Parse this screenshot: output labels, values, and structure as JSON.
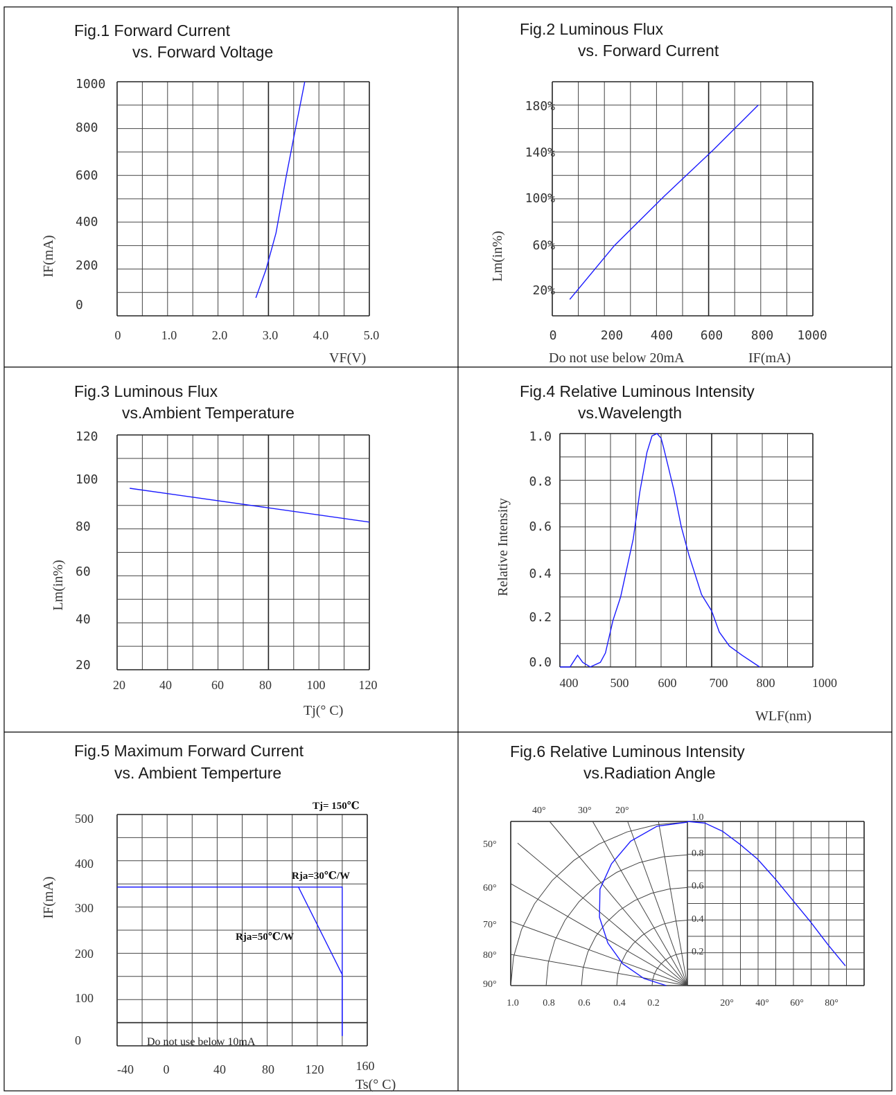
{
  "colors": {
    "curve": "#1a1aff",
    "grid": "#444444",
    "frame": "#000000"
  },
  "chart_data": [
    {
      "id": "fig1",
      "type": "line",
      "title": "Fig.1   Forward Current",
      "subtitle": "vs. Forward Voltage",
      "xlabel": "VF(V)",
      "ylabel": "IF(mA)",
      "xlim": [
        0,
        5
      ],
      "ylim": [
        0,
        1000
      ],
      "xticks": [
        "0",
        "1.0",
        "2.0",
        "3.0",
        "4.0",
        "5.0"
      ],
      "yticks": [
        "0",
        "200",
        "400",
        "600",
        "800",
        "1000"
      ],
      "x": [
        2.75,
        2.95,
        3.15,
        3.35,
        3.5,
        3.72
      ],
      "y": [
        0,
        130,
        300,
        560,
        740,
        1000
      ],
      "grid": true
    },
    {
      "id": "fig2",
      "type": "line",
      "title": "Fig.2   Luminous Flux",
      "subtitle": "vs. Forward Current",
      "xlabel": "IF(mA)",
      "xnote": "Do  not  use  below  20mA",
      "ylabel": "Lm(in%)",
      "xlim": [
        0,
        1000
      ],
      "ylim": [
        0,
        200
      ],
      "xticks": [
        "0",
        "200",
        "400",
        "600",
        "800",
        "1000"
      ],
      "yticks": [
        "20%",
        "60%",
        "100%",
        "140%",
        "180%"
      ],
      "x": [
        20,
        200,
        400,
        600,
        780
      ],
      "y": [
        14,
        60,
        102,
        142,
        180
      ],
      "grid": true
    },
    {
      "id": "fig3",
      "type": "line",
      "title": "Fig.3  Luminous Flux",
      "subtitle": "vs.Ambient Temperature",
      "xlabel": "Tj(° C)",
      "ylabel": "Lm(in%)",
      "xlim": [
        20,
        120
      ],
      "ylim": [
        20,
        120
      ],
      "xticks": [
        "20",
        "40",
        "60",
        "80",
        "100",
        "120"
      ],
      "yticks": [
        "20",
        "40",
        "60",
        "80",
        "100",
        "120"
      ],
      "x": [
        25,
        120
      ],
      "y": [
        100,
        85
      ],
      "grid": true
    },
    {
      "id": "fig4",
      "type": "line",
      "title": "Fig.4   Relative Luminous Intensity",
      "subtitle": "vs.Wavelength",
      "xlabel": "WLF(nm)",
      "ylabel": "Relative  Intensity",
      "xlim": [
        400,
        1000
      ],
      "ylim": [
        0,
        1.0
      ],
      "xticks": [
        "400",
        "500",
        "600",
        "700",
        "800",
        "1000"
      ],
      "yticks": [
        "0.0",
        "0.2",
        "0.4",
        "0.6",
        "0.8",
        "1.0"
      ],
      "x": [
        400,
        420,
        435,
        445,
        460,
        480,
        490,
        505,
        520,
        545,
        558,
        572,
        582,
        592,
        600,
        605,
        615,
        625,
        640,
        655,
        680,
        700,
        715,
        735,
        760,
        795
      ],
      "y": [
        0.0,
        0.0,
        0.05,
        0.02,
        0.0,
        0.02,
        0.06,
        0.2,
        0.3,
        0.55,
        0.75,
        0.92,
        0.99,
        1.0,
        0.98,
        0.94,
        0.85,
        0.76,
        0.6,
        0.48,
        0.31,
        0.24,
        0.15,
        0.09,
        0.05,
        0.0
      ],
      "grid": true
    },
    {
      "id": "fig5",
      "type": "line",
      "title": "Fig.5 Maximum Forward Current",
      "subtitle": "vs. Ambient Temperture",
      "xlabel": "Ts(° C)",
      "ylabel": "IF(mA)",
      "xlim": [
        -40,
        160
      ],
      "ylim": [
        0,
        500
      ],
      "xticks": [
        "-40",
        "0",
        "40",
        "80",
        "120",
        "160"
      ],
      "yticks": [
        "0",
        "100",
        "200",
        "300",
        "400",
        "500"
      ],
      "series": [
        {
          "name": "Rja=30℃/W",
          "x": [
            -40,
            140,
            140
          ],
          "y": [
            350,
            350,
            10
          ]
        },
        {
          "name": "Rja=50℃/W",
          "x": [
            -40,
            105,
            140,
            140
          ],
          "y": [
            350,
            350,
            150,
            10
          ]
        }
      ],
      "annotations": [
        "Tj= 150℃",
        "Rja=30℃/W",
        "Rja=50℃/W"
      ],
      "xnote": "Do  not  use  below  10mA",
      "grid": true
    },
    {
      "id": "fig6",
      "type": "line",
      "title": "Fig.6 Relative Luminous Intensity",
      "subtitle": "vs.Radiation Angle",
      "angles_top": [
        "40°",
        "30°",
        "20°"
      ],
      "angles_left": [
        "50°",
        "60°",
        "70°",
        "80°",
        "90°"
      ],
      "radial_ticks": [
        "1.0",
        "0.8",
        "0.6",
        "0.4",
        "0.2"
      ],
      "bottom_left_ticks": [
        "1.0",
        "0.8",
        "0.6",
        "0.4",
        "0.2"
      ],
      "bottom_right_ticks": [
        "20°",
        "40°",
        "60°",
        "80°"
      ],
      "x": [
        0,
        10,
        20,
        30,
        40,
        50,
        60,
        70,
        80,
        90
      ],
      "y": [
        1.0,
        0.99,
        0.94,
        0.86,
        0.77,
        0.65,
        0.52,
        0.39,
        0.25,
        0.12
      ],
      "grid": true
    }
  ]
}
